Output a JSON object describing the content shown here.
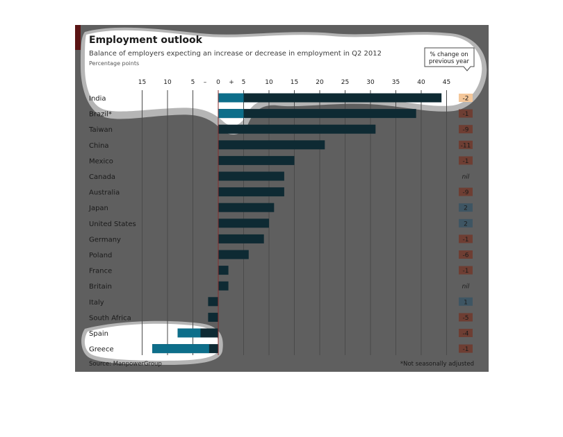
{
  "chart_data": {
    "type": "bar",
    "orientation": "horizontal",
    "title": "Employment outlook",
    "subtitle": "Balance of employers expecting an increase or decrease in employment in Q2 2012",
    "unit_label": "Percentage points",
    "minus_sign": "–",
    "plus_sign": "+",
    "x_ticks": [
      -15,
      -10,
      -5,
      0,
      5,
      10,
      15,
      20,
      25,
      30,
      35,
      40,
      45
    ],
    "x_tick_labels": [
      "15",
      "10",
      "5",
      "0",
      "5",
      "10",
      "15",
      "20",
      "25",
      "30",
      "35",
      "40",
      "45"
    ],
    "xlim": [
      -15,
      45
    ],
    "categories": [
      "India",
      "Brazil*",
      "Taiwan",
      "China",
      "Mexico",
      "Canada",
      "Australia",
      "Japan",
      "United States",
      "Germany",
      "Poland",
      "France",
      "Britain",
      "Italy",
      "South Africa",
      "Spain",
      "Greece"
    ],
    "values": [
      44,
      39,
      31,
      21,
      15,
      13,
      13,
      11,
      10,
      9,
      6,
      2,
      2,
      -2,
      -2,
      -8,
      -13
    ],
    "change_header": "% change on previous year",
    "change_labels": [
      "-2",
      "-1",
      "-9",
      "-11",
      "-1",
      "nil",
      "-9",
      "2",
      "2",
      "-1",
      "-6",
      "-1",
      "nil",
      "1",
      "-5",
      "-4",
      "-1"
    ],
    "source": "Source: ManpowerGroup",
    "footnote": "*Not seasonally adjusted",
    "colors": {
      "panel": "#5f5f5f",
      "bar": "#0e2a33",
      "bar_highlight": "#0d6e8a",
      "zero_line": "#8a2d2d",
      "grid": "#4a4a4a",
      "accent": "#5a1414",
      "box_negative": "#6e3e33",
      "box_positive": "#3e5563",
      "box_nil": "#5f5f5f",
      "box_highlight": "#f4c79a",
      "text": "#1a1a1a",
      "text_muted": "#3a3a3a",
      "highlight_shape": "#ffffff",
      "highlight_shadow": "#b5b5b5"
    }
  }
}
